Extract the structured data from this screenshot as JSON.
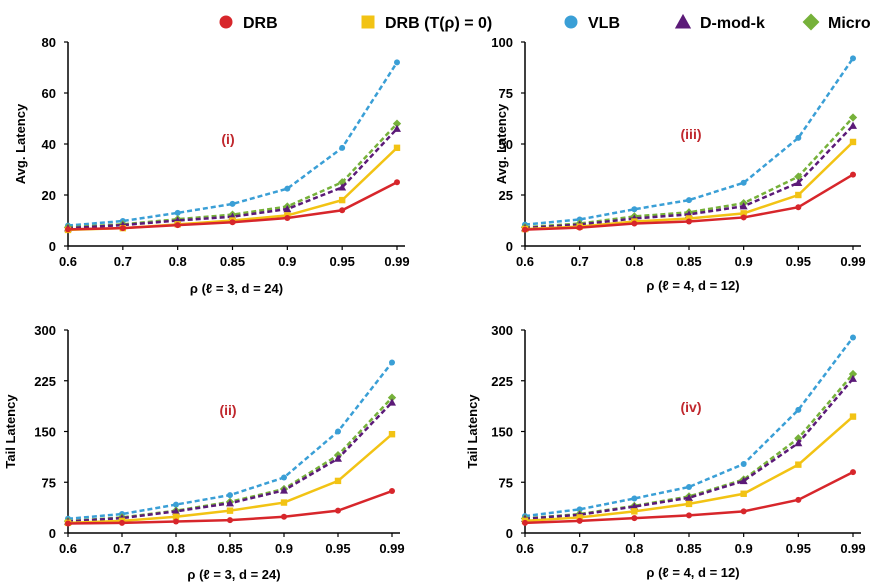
{
  "legend": [
    {
      "name": "DRB",
      "color": "#d7262b",
      "marker": "circle",
      "dash": false
    },
    {
      "name": "DRB (T(ρ) = 0)",
      "color": "#f2c314",
      "marker": "square",
      "dash": false
    },
    {
      "name": "VLB",
      "color": "#3a9fd6",
      "marker": "circle",
      "dash": true
    },
    {
      "name": "D-mod-k",
      "color": "#5b1a78",
      "marker": "triangle",
      "dash": true
    },
    {
      "name": "Micro",
      "color": "#76b13a",
      "marker": "diamond",
      "dash": true
    }
  ],
  "chart_data": [
    {
      "type": "line",
      "panel": "(i)",
      "xlabel": "ρ (ℓ = 3, d = 24)",
      "ylabel": "Avg. Latency",
      "categories": [
        "0.6",
        "0.7",
        "0.8",
        "0.85",
        "0.9",
        "0.95",
        "0.99"
      ],
      "ylim": [
        0,
        80
      ],
      "yticks": [
        0,
        20,
        40,
        60,
        80
      ],
      "series": [
        {
          "name": "DRB",
          "values": [
            6.5,
            7,
            8.2,
            9.3,
            11,
            14,
            25
          ]
        },
        {
          "name": "DRB (T(ρ) = 0)",
          "values": [
            6.3,
            7,
            8.5,
            10,
            12,
            18,
            38.5
          ]
        },
        {
          "name": "VLB",
          "values": [
            8,
            9.8,
            13,
            16.5,
            22.5,
            38.5,
            72
          ]
        },
        {
          "name": "D-mod-k",
          "values": [
            7,
            8.2,
            10,
            11.5,
            14.5,
            23,
            46
          ]
        },
        {
          "name": "Micro",
          "values": [
            7.3,
            8.5,
            10.5,
            12.3,
            15.5,
            25,
            48
          ]
        }
      ]
    },
    {
      "type": "line",
      "panel": "(iii)",
      "xlabel": "ρ (ℓ = 4, d = 12)",
      "ylabel": "Avg. Latency",
      "categories": [
        "0.6",
        "0.7",
        "0.8",
        "0.85",
        "0.9",
        "0.95",
        "0.99"
      ],
      "ylim": [
        0,
        100
      ],
      "yticks": [
        0,
        25,
        50,
        75,
        100
      ],
      "series": [
        {
          "name": "DRB",
          "values": [
            8,
            9,
            11,
            12,
            14,
            19,
            35
          ]
        },
        {
          "name": "DRB (T(ρ) = 0)",
          "values": [
            8.3,
            9.5,
            12,
            13.5,
            16,
            25,
            51
          ]
        },
        {
          "name": "VLB",
          "values": [
            10.5,
            13,
            18,
            22.5,
            31,
            53,
            92
          ]
        },
        {
          "name": "D-mod-k",
          "values": [
            8.8,
            10.5,
            13.5,
            15.5,
            19.5,
            31,
            59
          ]
        },
        {
          "name": "Micro",
          "values": [
            9.2,
            11,
            14.5,
            16.5,
            21,
            34,
            63
          ]
        }
      ]
    },
    {
      "type": "line",
      "panel": "(ii)",
      "xlabel": "ρ (ℓ = 3, d = 24)",
      "ylabel": "Tail Latency",
      "categories": [
        "0.6",
        "0.7",
        "0.8",
        "0.85",
        "0.9",
        "0.95",
        "0.99"
      ],
      "ylim": [
        0,
        300
      ],
      "yticks": [
        0,
        75,
        150,
        225,
        300
      ],
      "series": [
        {
          "name": "DRB",
          "values": [
            14,
            15,
            17,
            19,
            24,
            33,
            62
          ]
        },
        {
          "name": "DRB (T(ρ) = 0)",
          "values": [
            15,
            18,
            24,
            33,
            45,
            77,
            146
          ]
        },
        {
          "name": "VLB",
          "values": [
            21,
            28,
            42,
            56,
            82,
            150,
            252
          ]
        },
        {
          "name": "D-mod-k",
          "values": [
            17,
            22,
            32,
            44,
            63,
            110,
            193
          ]
        },
        {
          "name": "Micro",
          "values": [
            17.5,
            23,
            33,
            46,
            65,
            115,
            200
          ]
        }
      ]
    },
    {
      "type": "line",
      "panel": "(iv)",
      "xlabel": "ρ (ℓ = 4, d = 12)",
      "ylabel": "Tail Latency",
      "categories": [
        "0.6",
        "0.7",
        "0.8",
        "0.85",
        "0.9",
        "0.95",
        "0.99"
      ],
      "ylim": [
        0,
        300
      ],
      "yticks": [
        0,
        75,
        150,
        225,
        300
      ],
      "series": [
        {
          "name": "DRB",
          "values": [
            15,
            18,
            22,
            26,
            32,
            49,
            90
          ]
        },
        {
          "name": "DRB (T(ρ) = 0)",
          "values": [
            18,
            23,
            32,
            43,
            58,
            101,
            172
          ]
        },
        {
          "name": "VLB",
          "values": [
            25,
            35,
            51,
            68,
            102,
            182,
            289
          ]
        },
        {
          "name": "D-mod-k",
          "values": [
            21,
            27,
            39,
            52,
            77,
            133,
            228
          ]
        },
        {
          "name": "Micro",
          "values": [
            21.5,
            28,
            40,
            54,
            79,
            140,
            235
          ]
        }
      ]
    }
  ]
}
